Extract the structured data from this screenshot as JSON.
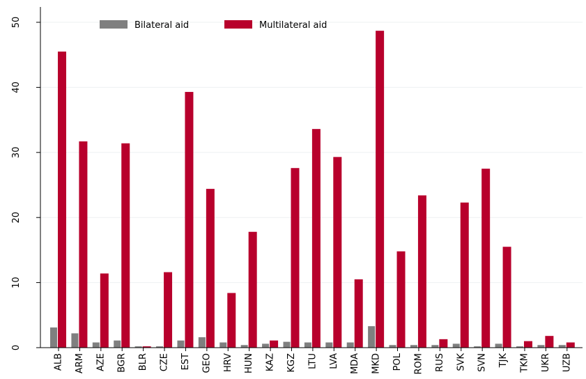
{
  "chart_data": {
    "type": "bar",
    "categories": [
      "ALB",
      "ARM",
      "AZE",
      "BGR",
      "BLR",
      "CZE",
      "EST",
      "GEO",
      "HRV",
      "HUN",
      "KAZ",
      "KGZ",
      "LTU",
      "LVA",
      "MDA",
      "MKD",
      "POL",
      "ROM",
      "RUS",
      "SVK",
      "SVN",
      "TJK",
      "TKM",
      "UKR",
      "UZB"
    ],
    "series": [
      {
        "name": "Bilateral aid",
        "color": "#7f7f7f",
        "values": [
          3.1,
          2.2,
          0.8,
          1.1,
          0.2,
          0.2,
          1.1,
          1.6,
          0.8,
          0.4,
          0.6,
          0.9,
          0.8,
          0.8,
          0.8,
          3.3,
          0.4,
          0.4,
          0.4,
          0.6,
          0.2,
          0.6,
          0.2,
          0.4,
          0.4
        ]
      },
      {
        "name": "Multilateral aid",
        "color": "#b8002c",
        "values": [
          45.5,
          31.7,
          11.4,
          31.4,
          0.2,
          11.6,
          39.3,
          24.4,
          8.4,
          17.8,
          1.1,
          27.6,
          33.6,
          29.3,
          10.5,
          48.7,
          14.8,
          23.4,
          1.3,
          22.3,
          27.5,
          15.5,
          1.0,
          1.8,
          0.8
        ]
      }
    ],
    "ylim": [
      0,
      50
    ],
    "yticks": [
      0,
      10,
      20,
      30,
      40,
      50
    ],
    "grid": true,
    "legend": "top-left"
  }
}
